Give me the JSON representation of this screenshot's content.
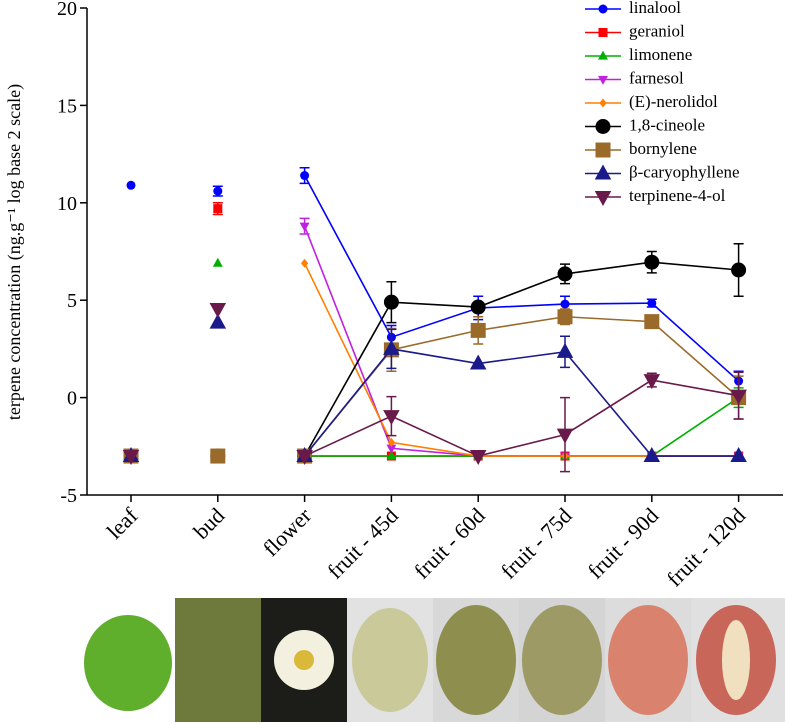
{
  "chart_data": {
    "type": "line",
    "y_label": "terpene concentration (ng.g⁻¹  log base 2 scale)",
    "categories": [
      "leaf",
      "bud",
      "flower",
      "fruit - 45d",
      "fruit - 60d",
      "fruit - 75d",
      "fruit - 90d",
      "fruit - 120d"
    ],
    "lines_start_at": "flower",
    "ylim": [
      -5,
      20
    ],
    "yticks": [
      -5,
      0,
      5,
      10,
      15,
      20
    ],
    "grid": false,
    "legend": "upper right",
    "series": [
      {
        "name": "linalool",
        "color": "#0000ff",
        "marker": "circle",
        "values": [
          10.9,
          10.6,
          11.4,
          3.1,
          4.6,
          4.8,
          4.85,
          0.85
        ],
        "errors": [
          null,
          0.25,
          0.4,
          0.6,
          0.6,
          0.4,
          0.2,
          0.5
        ]
      },
      {
        "name": "geraniol",
        "color": "#ff0000",
        "marker": "square",
        "values": [
          -3,
          9.7,
          -3,
          -3,
          -3,
          -3,
          -3,
          -3
        ],
        "errors": [
          null,
          0.3,
          null,
          null,
          null,
          null,
          null,
          null
        ]
      },
      {
        "name": "limonene",
        "color": "#00b000",
        "marker": "triangle",
        "values": [
          -3,
          6.9,
          -3,
          -3,
          -3,
          -3,
          -3,
          0
        ],
        "errors": [
          null,
          null,
          null,
          null,
          null,
          null,
          null,
          0.5
        ]
      },
      {
        "name": "farnesol",
        "color": "#c020e0",
        "marker": "triangle-down",
        "values": [
          -3,
          -3,
          8.8,
          -2.6,
          -3,
          -3,
          -3,
          -3
        ],
        "errors": [
          null,
          null,
          0.4,
          null,
          null,
          null,
          null,
          null
        ]
      },
      {
        "name": "(E)-nerolidol",
        "color": "#ff8000",
        "marker": "diamond",
        "values": [
          -3,
          -3,
          6.9,
          -2.3,
          -3,
          -3,
          -3,
          -3
        ],
        "errors": [
          null,
          null,
          null,
          null,
          null,
          null,
          null,
          null
        ]
      },
      {
        "name": "1,8-cineole",
        "color": "#000000",
        "marker": "big-circle",
        "values": [
          -3,
          -3,
          -3,
          4.9,
          4.65,
          6.35,
          6.95,
          6.55
        ],
        "errors": [
          null,
          null,
          null,
          1.05,
          null,
          0.5,
          0.55,
          1.35
        ]
      },
      {
        "name": "bornylene",
        "color": "#9a6a2a",
        "marker": "big-square",
        "values": [
          -3,
          -3,
          -3,
          2.45,
          3.45,
          4.15,
          3.9,
          0
        ],
        "errors": [
          null,
          null,
          null,
          1.1,
          0.7,
          0.4,
          0.2,
          1.1
        ]
      },
      {
        "name": "β-caryophyllene",
        "color": "#1a1a8a",
        "marker": "big-triangle",
        "values": [
          -3,
          3.85,
          -3,
          2.5,
          1.75,
          2.35,
          -3,
          -3
        ],
        "errors": [
          null,
          null,
          null,
          1.0,
          null,
          0.8,
          null,
          null
        ]
      },
      {
        "name": "terpinene-4-ol",
        "color": "#6a1a4a",
        "marker": "big-triangle-down",
        "values": [
          -3,
          4.55,
          -3,
          -0.95,
          -3,
          -1.9,
          0.9,
          0.1
        ],
        "errors": [
          null,
          null,
          null,
          1.0,
          null,
          1.9,
          0.35,
          1.2
        ]
      }
    ]
  }
}
